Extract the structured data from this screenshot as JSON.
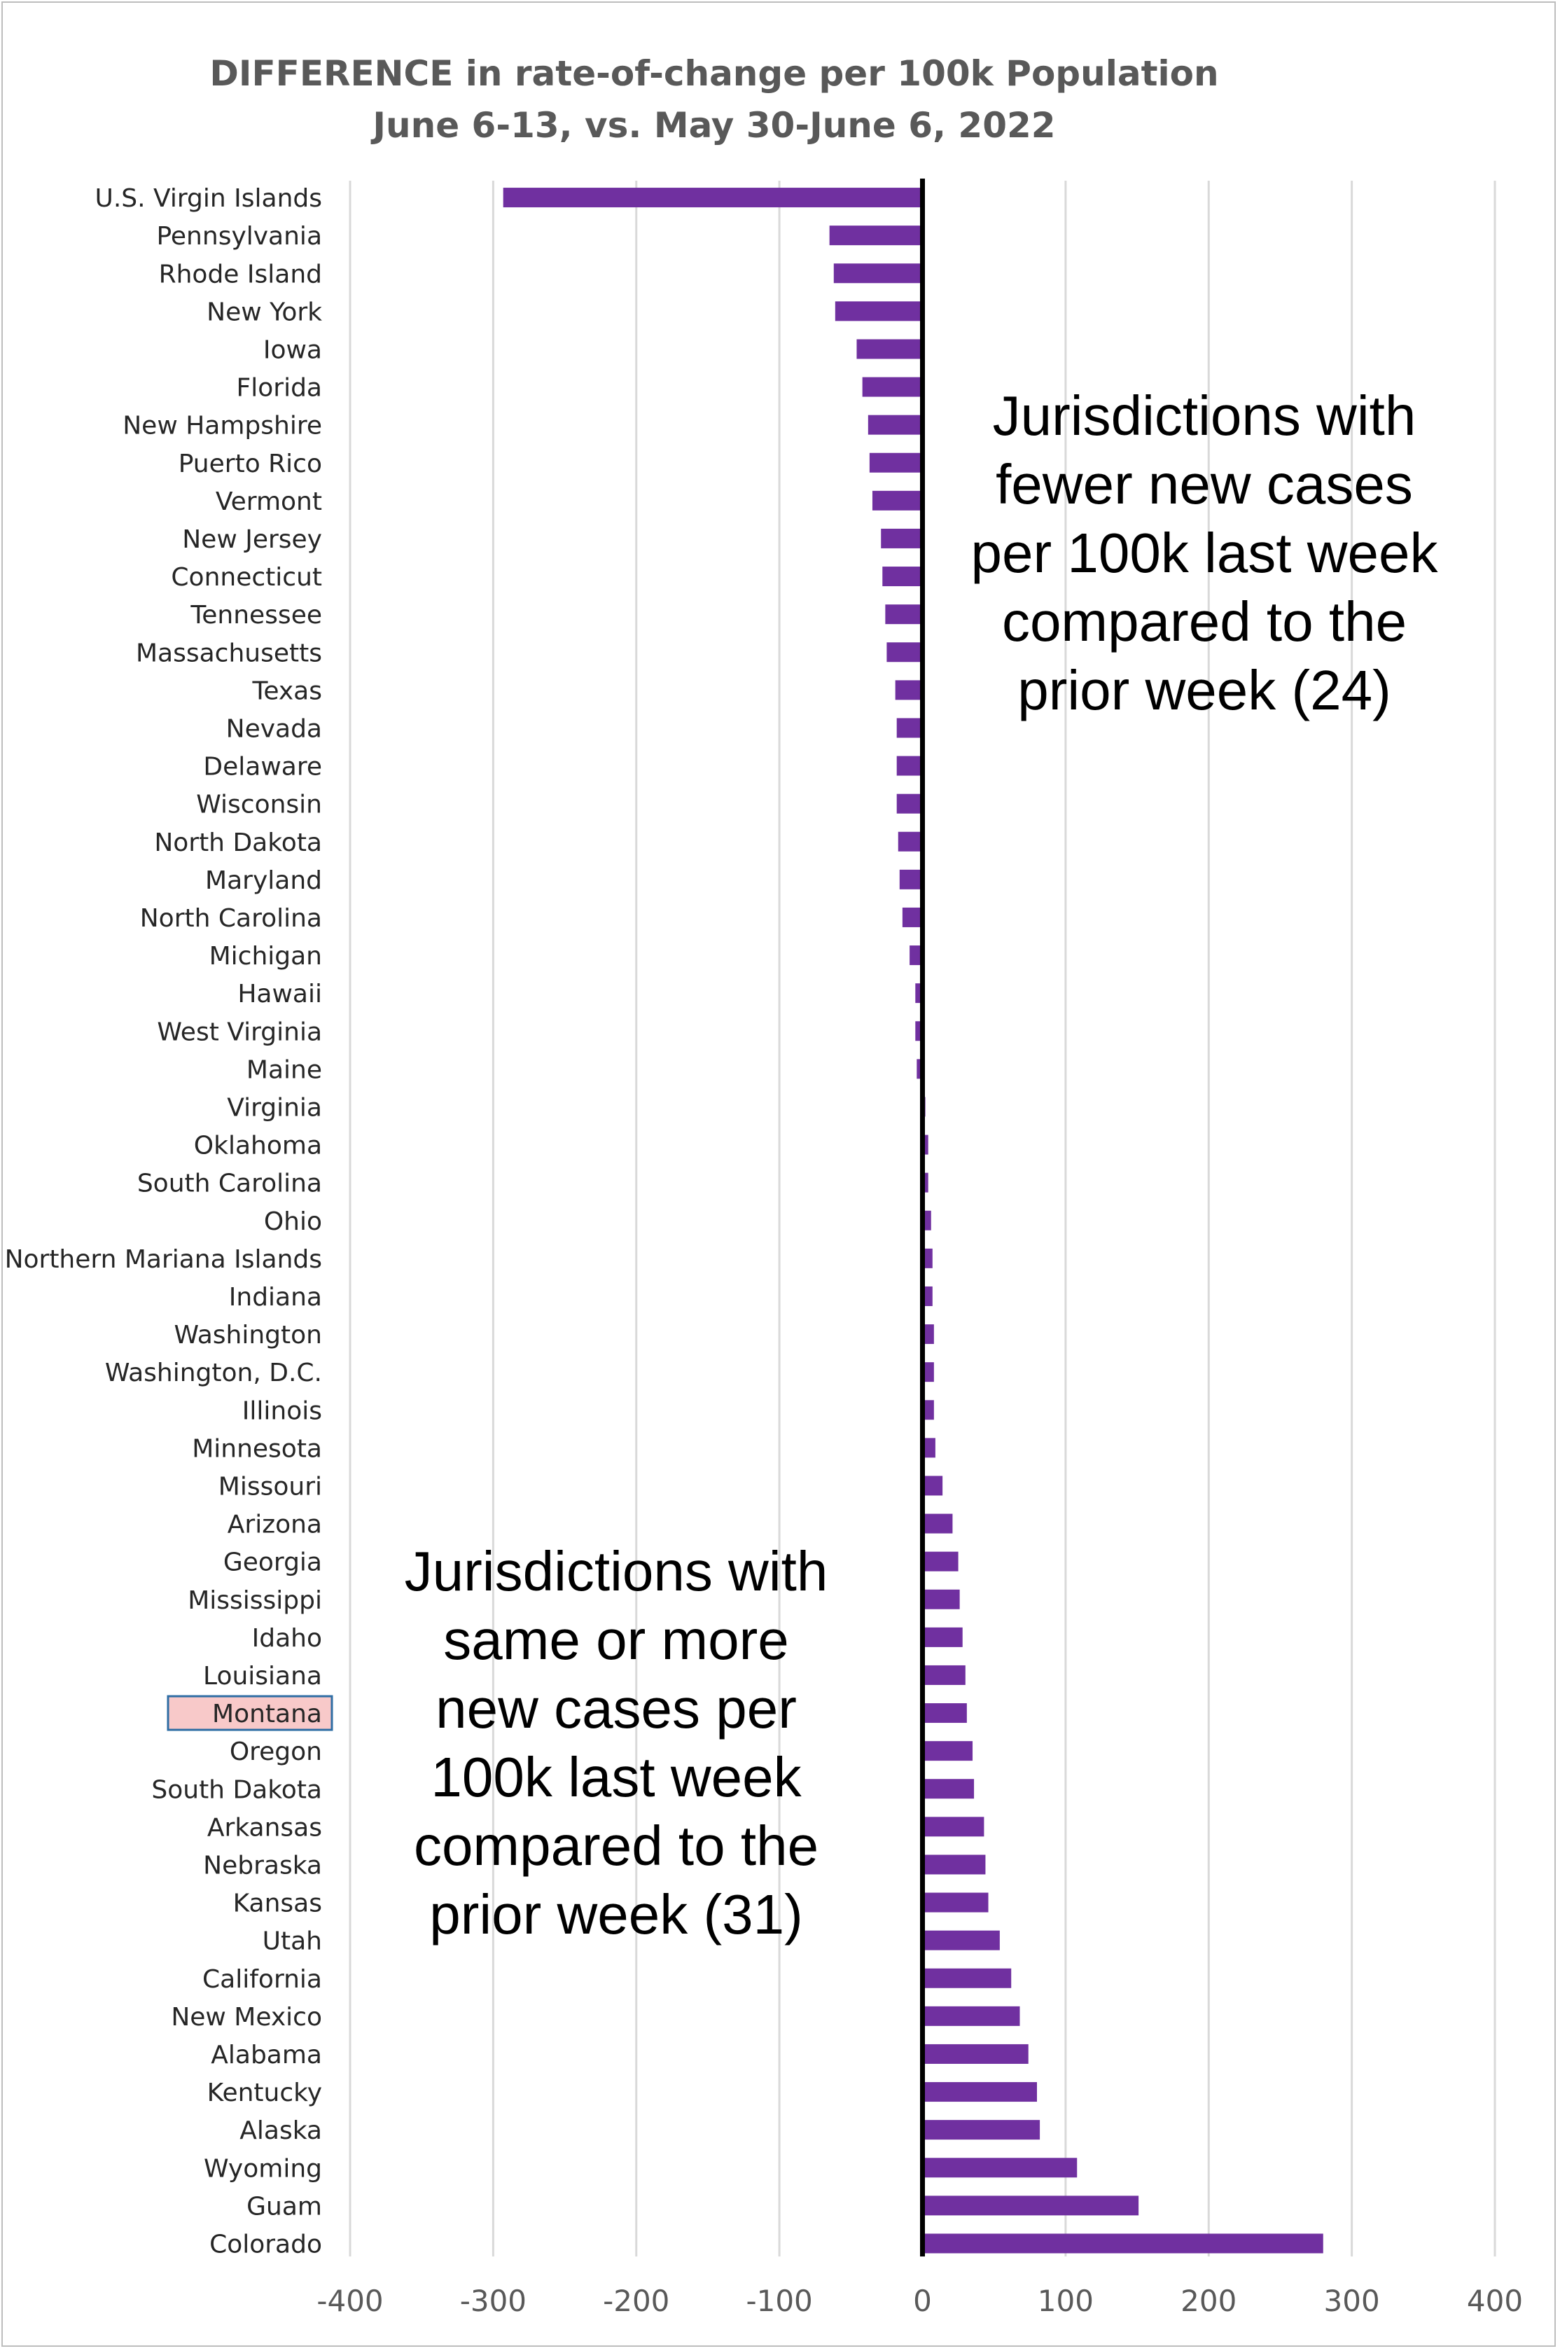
{
  "chart_data": {
    "type": "bar",
    "orientation": "horizontal",
    "title": "DIFFERENCE in rate-of-change per 100k Population",
    "subtitle": "June 6-13, vs. May 30-June 6, 2022",
    "xlabel": "",
    "ylabel": "",
    "xlim": [
      -400,
      400
    ],
    "xticks": [
      -400,
      -300,
      -200,
      -100,
      0,
      100,
      200,
      300,
      400
    ],
    "grid": true,
    "bar_color": "#7030a0",
    "highlight_color": "#f8c9c9",
    "highlight_border_color": "#2e6da4",
    "highlighted_category": "Montana",
    "categories": [
      "U.S. Virgin Islands",
      "Pennsylvania",
      "Rhode Island",
      "New York",
      "Iowa",
      "Florida",
      "New Hampshire",
      "Puerto Rico",
      "Vermont",
      "New Jersey",
      "Connecticut",
      "Tennessee",
      "Massachusetts",
      "Texas",
      "Nevada",
      "Delaware",
      "Wisconsin",
      "North Dakota",
      "Maryland",
      "North Carolina",
      "Michigan",
      "Hawaii",
      "West Virginia",
      "Maine",
      "Virginia",
      "Oklahoma",
      "South Carolina",
      "Ohio",
      "Northern Mariana Islands",
      "Indiana",
      "Washington",
      "Washington, D.C.",
      "Illinois",
      "Minnesota",
      "Missouri",
      "Arizona",
      "Georgia",
      "Mississippi",
      "Idaho",
      "Louisiana",
      "Montana",
      "Oregon",
      "South Dakota",
      "Arkansas",
      "Nebraska",
      "Kansas",
      "Utah",
      "California",
      "New Mexico",
      "Alabama",
      "Kentucky",
      "Alaska",
      "Wyoming",
      "Guam",
      "Colorado"
    ],
    "values": [
      -293,
      -65,
      -62,
      -61,
      -46,
      -42,
      -38,
      -37,
      -35,
      -29,
      -28,
      -26,
      -25,
      -19,
      -18,
      -18,
      -18,
      -17,
      -16,
      -14,
      -9,
      -5,
      -5,
      -4,
      2,
      4,
      4,
      6,
      7,
      7,
      8,
      8,
      8,
      9,
      14,
      21,
      25,
      26,
      28,
      30,
      31,
      35,
      36,
      43,
      44,
      46,
      54,
      62,
      68,
      74,
      80,
      82,
      108,
      151,
      280
    ],
    "annotations": [
      {
        "id": "top",
        "lines": [
          "Jurisdictions with",
          "fewer new cases",
          "per 100k last week",
          "compared to the",
          "prior week (24)"
        ]
      },
      {
        "id": "bottom",
        "lines": [
          "Jurisdictions with",
          "same or more",
          "new cases per",
          "100k last week",
          "compared to the",
          "prior week (31)"
        ]
      }
    ]
  }
}
